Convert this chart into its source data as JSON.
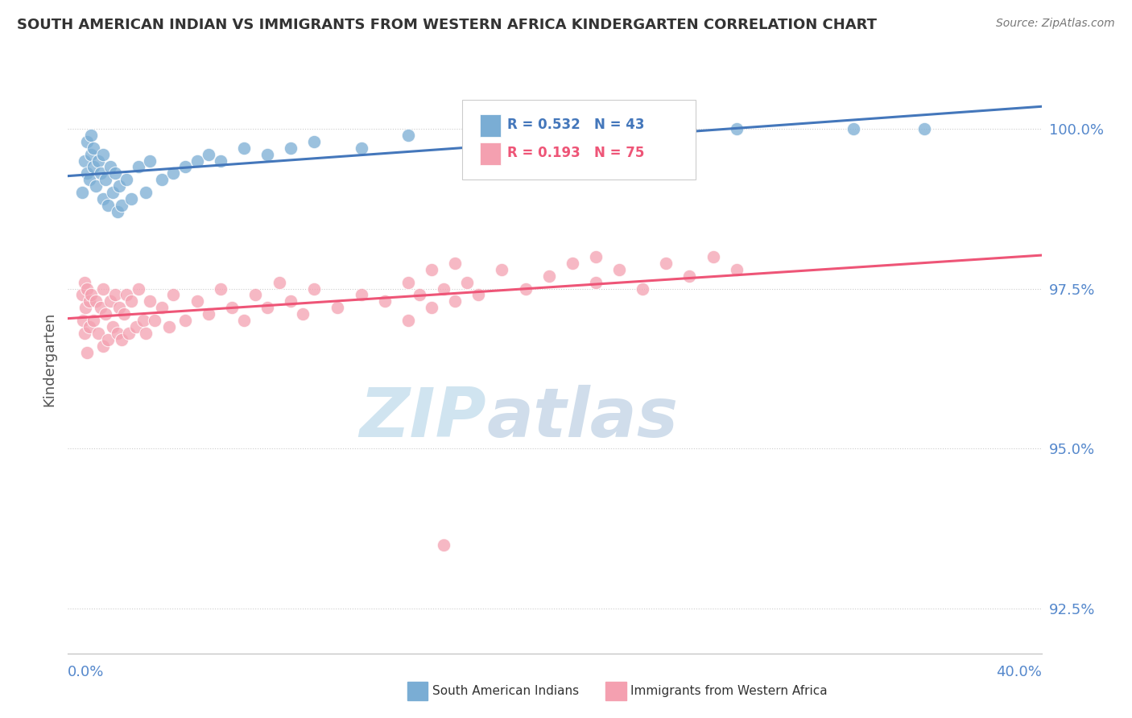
{
  "title": "SOUTH AMERICAN INDIAN VS IMMIGRANTS FROM WESTERN AFRICA KINDERGARTEN CORRELATION CHART",
  "source": "Source: ZipAtlas.com",
  "ylabel": "Kindergarten",
  "ymin": 91.8,
  "ymax": 101.0,
  "xmin": -0.5,
  "xmax": 41.0,
  "yticks": [
    92.5,
    95.0,
    97.5,
    100.0
  ],
  "ytick_labels": [
    "92.5%",
    "95.0%",
    "97.5%",
    "100.0%"
  ],
  "blue_R": 0.532,
  "blue_N": 43,
  "pink_R": 0.193,
  "pink_N": 75,
  "blue_label": "South American Indians",
  "pink_label": "Immigrants from Western Africa",
  "blue_color": "#7AADD4",
  "pink_color": "#F4A0B0",
  "blue_line_color": "#4477BB",
  "pink_line_color": "#EE5577",
  "watermark_color": "#D0E4F0",
  "watermark_color2": "#C8D8E8",
  "title_color": "#333333",
  "axis_label_color": "#5588CC",
  "grid_color": "#CCCCCC",
  "background_color": "#FFFFFF",
  "blue_x": [
    0.1,
    0.2,
    0.3,
    0.3,
    0.4,
    0.5,
    0.5,
    0.6,
    0.6,
    0.7,
    0.8,
    0.9,
    1.0,
    1.0,
    1.1,
    1.2,
    1.3,
    1.4,
    1.5,
    1.6,
    1.7,
    1.8,
    2.0,
    2.2,
    2.5,
    2.8,
    3.0,
    3.5,
    4.0,
    4.5,
    5.0,
    5.5,
    6.0,
    7.0,
    8.0,
    9.0,
    10.0,
    12.0,
    14.0,
    22.0,
    28.0,
    33.0,
    36.0
  ],
  "blue_y": [
    99.0,
    99.5,
    99.3,
    99.8,
    99.2,
    99.6,
    99.9,
    99.4,
    99.7,
    99.1,
    99.5,
    99.3,
    98.9,
    99.6,
    99.2,
    98.8,
    99.4,
    99.0,
    99.3,
    98.7,
    99.1,
    98.8,
    99.2,
    98.9,
    99.4,
    99.0,
    99.5,
    99.2,
    99.3,
    99.4,
    99.5,
    99.6,
    99.5,
    99.7,
    99.6,
    99.7,
    99.8,
    99.7,
    99.9,
    100.0,
    100.0,
    100.0,
    100.0
  ],
  "pink_x": [
    0.1,
    0.15,
    0.2,
    0.2,
    0.25,
    0.3,
    0.3,
    0.4,
    0.4,
    0.5,
    0.6,
    0.7,
    0.8,
    0.9,
    1.0,
    1.0,
    1.1,
    1.2,
    1.3,
    1.4,
    1.5,
    1.6,
    1.7,
    1.8,
    1.9,
    2.0,
    2.1,
    2.2,
    2.4,
    2.5,
    2.7,
    2.8,
    3.0,
    3.2,
    3.5,
    3.8,
    4.0,
    4.5,
    5.0,
    5.5,
    6.0,
    6.5,
    7.0,
    7.5,
    8.0,
    8.5,
    9.0,
    9.5,
    10.0,
    11.0,
    12.0,
    13.0,
    14.0,
    14.0,
    14.5,
    15.0,
    15.0,
    15.5,
    16.0,
    16.0,
    16.5,
    17.0,
    18.0,
    19.0,
    20.0,
    21.0,
    22.0,
    22.0,
    23.0,
    24.0,
    25.0,
    26.0,
    27.0,
    28.0,
    15.5
  ],
  "pink_y": [
    97.4,
    97.0,
    97.6,
    96.8,
    97.2,
    97.5,
    96.5,
    97.3,
    96.9,
    97.4,
    97.0,
    97.3,
    96.8,
    97.2,
    97.5,
    96.6,
    97.1,
    96.7,
    97.3,
    96.9,
    97.4,
    96.8,
    97.2,
    96.7,
    97.1,
    97.4,
    96.8,
    97.3,
    96.9,
    97.5,
    97.0,
    96.8,
    97.3,
    97.0,
    97.2,
    96.9,
    97.4,
    97.0,
    97.3,
    97.1,
    97.5,
    97.2,
    97.0,
    97.4,
    97.2,
    97.6,
    97.3,
    97.1,
    97.5,
    97.2,
    97.4,
    97.3,
    97.6,
    97.0,
    97.4,
    97.2,
    97.8,
    97.5,
    97.3,
    97.9,
    97.6,
    97.4,
    97.8,
    97.5,
    97.7,
    97.9,
    97.6,
    98.0,
    97.8,
    97.5,
    97.9,
    97.7,
    98.0,
    97.8,
    93.5
  ]
}
